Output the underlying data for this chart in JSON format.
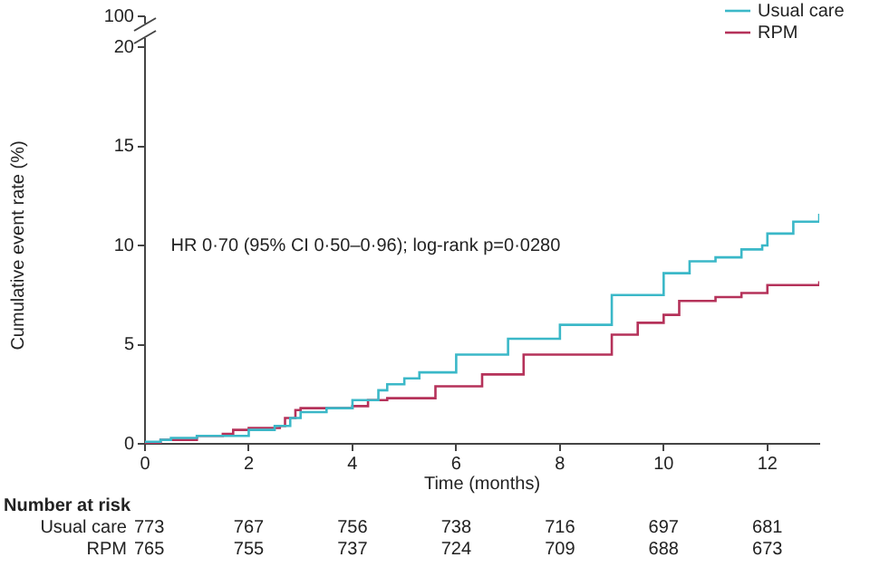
{
  "chart_data": {
    "type": "step",
    "xlabel": "Time (months)",
    "ylabel": "Cumulative event rate (%)",
    "xlim": [
      0,
      13
    ],
    "xticks": [
      0,
      2,
      4,
      6,
      8,
      10,
      12
    ],
    "ylim": [
      0,
      20
    ],
    "yticks": [
      0,
      5,
      10,
      15,
      20
    ],
    "grid": false,
    "legend": "top right",
    "series": [
      {
        "name": "Usual care",
        "color": "#3bb8c8",
        "x": [
          0,
          0.3,
          0.5,
          1,
          2,
          2.5,
          2.8,
          3,
          3.5,
          4,
          4.5,
          4.67,
          5,
          5.29,
          6,
          7,
          8,
          9,
          10,
          10.5,
          11,
          11.5,
          11.9,
          12,
          12.5,
          13
        ],
        "values": [
          0.1,
          0.2,
          0.3,
          0.4,
          0.7,
          0.9,
          1.3,
          1.6,
          1.8,
          2.2,
          2.7,
          3.0,
          3.3,
          3.6,
          4.5,
          5.3,
          6.0,
          7.5,
          8.6,
          9.2,
          9.4,
          9.8,
          10.0,
          10.6,
          11.2,
          11.6
        ]
      },
      {
        "name": "RPM",
        "color": "#b5325a",
        "x": [
          0,
          0.3,
          1,
          1.5,
          1.7,
          2,
          2.6,
          2.7,
          2.9,
          3,
          4,
          4.3,
          4.67,
          5.6,
          6.5,
          7.3,
          8.2,
          9,
          9.5,
          10,
          10.3,
          11,
          11.5,
          12,
          13
        ],
        "values": [
          0,
          0.2,
          0.4,
          0.5,
          0.7,
          0.8,
          0.9,
          1.3,
          1.7,
          1.8,
          1.9,
          2.2,
          2.3,
          2.9,
          3.5,
          4.5,
          4.5,
          5.5,
          6.1,
          6.5,
          7.2,
          7.4,
          7.6,
          8.0,
          8.2
        ]
      }
    ],
    "annotations": [
      "HR 0·70 (95% CI 0·50–0·96); log-rank p=0·0280",
      "100",
      "Number at risk",
      "Usual care",
      "773",
      "767",
      "756",
      "738",
      "716",
      "697",
      "681",
      "RPM",
      "765",
      "755",
      "737",
      "724",
      "709",
      "688",
      "673"
    ]
  }
}
